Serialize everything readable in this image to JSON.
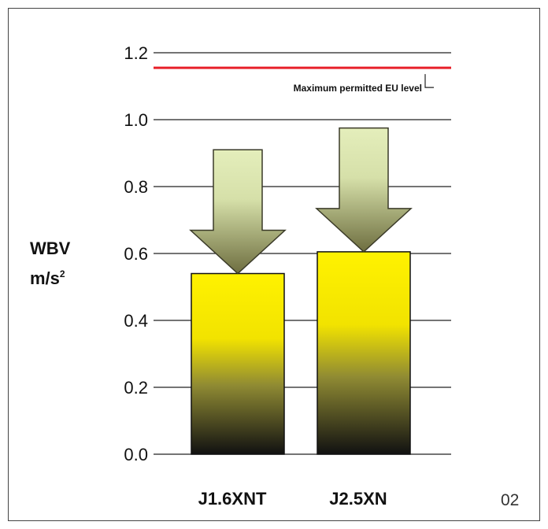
{
  "chart_data": {
    "type": "bar",
    "categories": [
      "J1.6XNT",
      "J2.5XN"
    ],
    "values": [
      0.54,
      0.605
    ],
    "arrows": [
      {
        "from": 0.91,
        "to": 0.54
      },
      {
        "from": 0.975,
        "to": 0.605
      }
    ],
    "ylabel_line1": "WBV",
    "ylabel_line2": "m/s",
    "ylabel_sup": "2",
    "yticks": [
      "0.0",
      "0.2",
      "0.4",
      "0.6",
      "0.8",
      "1.0",
      "1.2"
    ],
    "ylim": [
      0,
      1.2
    ],
    "grid": true,
    "reference_line": {
      "value": 1.155,
      "label": "Maximum permitted EU level",
      "color": "#e8202a"
    },
    "colors": {
      "bar_top": "#fff200",
      "bar_bottom": "#111111",
      "arrow_top": "#e4eebb",
      "arrow_bottom": "#6e6e40"
    },
    "figure_number": "02"
  }
}
